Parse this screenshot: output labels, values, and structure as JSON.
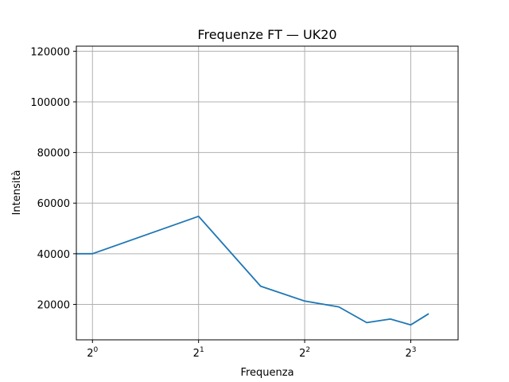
{
  "chart_data": {
    "type": "line",
    "title": "Frequenze FT — UK20",
    "xlabel": "Frequenza",
    "ylabel": "Intensità",
    "x_scale": "log2",
    "xlim": [
      0.9,
      10.9
    ],
    "ylim": [
      6000,
      122000
    ],
    "x_ticks": [
      {
        "value": 1,
        "base": "2",
        "exp": "0"
      },
      {
        "value": 2,
        "base": "2",
        "exp": "1"
      },
      {
        "value": 4,
        "base": "2",
        "exp": "2"
      },
      {
        "value": 8,
        "base": "2",
        "exp": "3"
      }
    ],
    "y_ticks": [
      {
        "value": 20000,
        "label": "20000"
      },
      {
        "value": 40000,
        "label": "40000"
      },
      {
        "value": 60000,
        "label": "60000"
      },
      {
        "value": 80000,
        "label": "80000"
      },
      {
        "value": 100000,
        "label": "100000"
      },
      {
        "value": 120000,
        "label": "120000"
      }
    ],
    "grid": true,
    "series": [
      {
        "color": "#1f77b4",
        "x": [
          0.9,
          1,
          2,
          3,
          4,
          5,
          6,
          7,
          8,
          9
        ],
        "y": [
          40000,
          40000,
          54800,
          27200,
          21300,
          19000,
          12800,
          14200,
          11900,
          16300
        ]
      }
    ]
  }
}
